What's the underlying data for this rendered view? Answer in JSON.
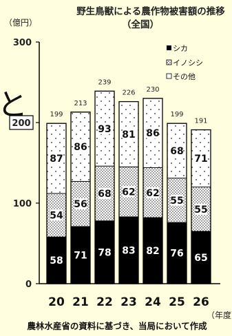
{
  "chart_data": {
    "type": "bar",
    "stacked": true,
    "title_line1": "野生鳥獣による農作物被害額の推移",
    "title_line2": "（全国）",
    "ylabel": "（億円）",
    "xlabel": "（年度）",
    "ylim": [
      0,
      300
    ],
    "yticks": [
      0,
      100,
      200,
      300
    ],
    "highlight_tick": 200,
    "categories": [
      "20",
      "21",
      "22",
      "23",
      "24",
      "25",
      "26"
    ],
    "series": [
      {
        "name": "シカ",
        "values": [
          58,
          71,
          78,
          83,
          82,
          76,
          65
        ]
      },
      {
        "name": "イノシシ",
        "values": [
          54,
          56,
          68,
          62,
          62,
          55,
          55
        ]
      },
      {
        "name": "その他",
        "values": [
          87,
          86,
          93,
          81,
          86,
          68,
          71
        ]
      }
    ],
    "totals": [
      199,
      213,
      239,
      226,
      230,
      199,
      191
    ],
    "legend_position": "top-right",
    "grid": false,
    "colors": {
      "background": "#ffffe0",
      "deer": "#000000",
      "boar": "#ffffff",
      "other": "#ffffff"
    }
  },
  "source_note": "農林水産省の資料に基づき、当局において作成",
  "side_glyph": "と"
}
